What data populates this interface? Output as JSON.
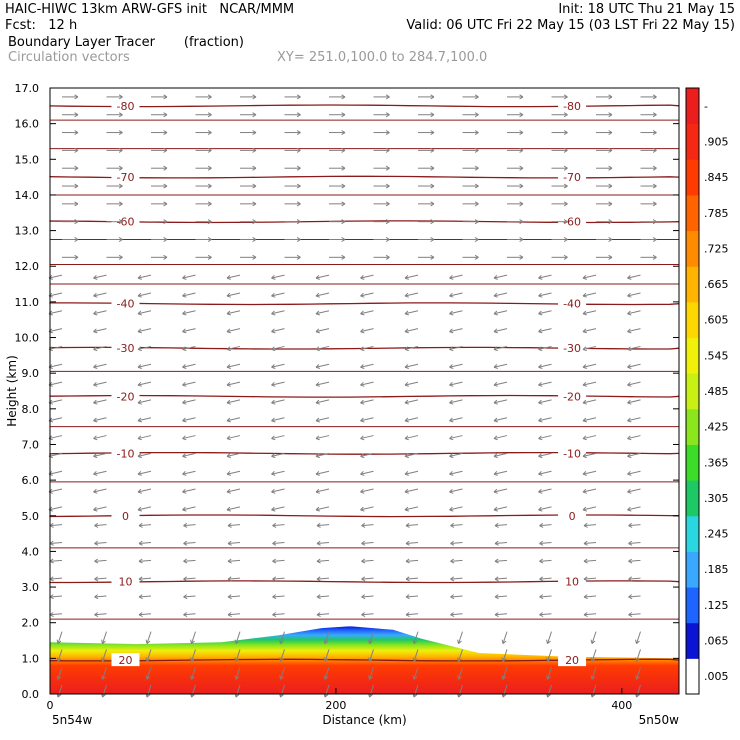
{
  "header": {
    "line1_left": "HAIC-HIWC 13km ARW-GFS init   NCAR/MMM",
    "line1_right": "Init: 18 UTC Thu 21 May 15",
    "line2_left": "Fcst:   12 h",
    "line2_right": "Valid: 06 UTC Fri 22 May 15 (03 LST Fri 22 May 15)",
    "line3_left": "Boundary Layer Tracer       (fraction)",
    "line4_left": "Circulation vectors",
    "line4_right": "XY= 251.0,100.0 to 284.7,100.0"
  },
  "colors": {
    "contour": "#8b1a1a",
    "vectors": "#808080",
    "frame": "#000000"
  },
  "chart_data": {
    "type": "heatmap",
    "title": "Boundary Layer Tracer",
    "units": "(fraction)",
    "overlay": "Circulation vectors",
    "xlabel": "Distance (km)",
    "ylabel": "Height (km)",
    "xlim": [
      0,
      440
    ],
    "ylim": [
      0,
      17
    ],
    "xticks": [
      0,
      200,
      400
    ],
    "yticks": [
      "0.0",
      "1.0",
      "2.0",
      "3.0",
      "4.0",
      "5.0",
      "6.0",
      "7.0",
      "8.0",
      "9.0",
      "10.0",
      "11.0",
      "12.0",
      "13.0",
      "14.0",
      "15.0",
      "16.0",
      "17.0"
    ],
    "x_end_labels": [
      "5n54w",
      "5n50w"
    ],
    "colorbar": {
      "labels": [
        ".005",
        ".065",
        ".125",
        ".185",
        ".245",
        ".305",
        ".365",
        ".425",
        ".485",
        ".545",
        ".605",
        ".665",
        ".725",
        ".785",
        ".845",
        ".905",
        "-"
      ],
      "colors": [
        "#ffffff",
        "#0a14d2",
        "#1e64ff",
        "#3aa8ff",
        "#2ad6e0",
        "#1ec864",
        "#3cdc28",
        "#8ce61e",
        "#c8f014",
        "#f0f00a",
        "#ffd700",
        "#ffb400",
        "#ff8c00",
        "#ff6400",
        "#ff3c00",
        "#f52814",
        "#eb1e1e"
      ]
    },
    "temperature_contours": [
      {
        "label": "20",
        "height_km": 0.95
      },
      {
        "label": "10",
        "height_km": 3.15
      },
      {
        "label": "0",
        "height_km": 5.0
      },
      {
        "label": "-10",
        "height_km": 6.75
      },
      {
        "label": "-20",
        "height_km": 8.35
      },
      {
        "label": "-30",
        "height_km": 9.7
      },
      {
        "label": "-40",
        "height_km": 10.95
      },
      {
        "label": "-60",
        "height_km": 13.25
      },
      {
        "label": "-70",
        "height_km": 14.5
      },
      {
        "label": "-80",
        "height_km": 16.5
      }
    ],
    "tracer_top_profile": {
      "x_km": [
        0,
        60,
        120,
        160,
        190,
        210,
        240,
        260,
        300,
        360,
        440
      ],
      "top_height_km": [
        1.45,
        1.4,
        1.45,
        1.65,
        1.85,
        1.9,
        1.8,
        1.55,
        1.15,
        1.05,
        1.0
      ]
    }
  }
}
